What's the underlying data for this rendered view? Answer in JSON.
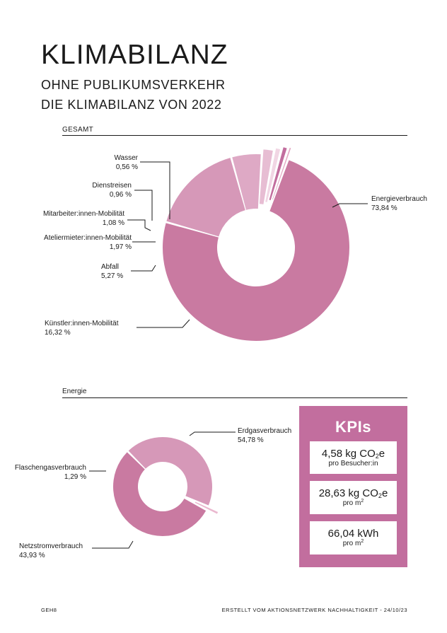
{
  "header": {
    "title": "KLIMABILANZ",
    "subtitle_line1": "OHNE PUBLIKUMSVERKEHR",
    "subtitle_line2": "DIE KLIMABILANZ VON 2022"
  },
  "sections": {
    "gesamt_heading": "GESAMT",
    "energie_heading": "Energie"
  },
  "chart_data": [
    {
      "type": "donut",
      "title": "GESAMT",
      "categories": [
        "Energieverbrauch",
        "Künstler:innen-Mobilität",
        "Abfall",
        "Ateliermieter:innen-Mobilität",
        "Mitarbeiter:innen-Mobilität",
        "Dienstreisen",
        "Wasser"
      ],
      "values": [
        73.84,
        16.32,
        5.27,
        1.97,
        1.08,
        0.96,
        0.56
      ],
      "value_labels": [
        "73,84 %",
        "16,32 %",
        "5,27 %",
        "1,97 %",
        "1,08 %",
        "0,96 %",
        "0,56 %"
      ],
      "unit": "%",
      "colors": [
        "#c97aa1",
        "#d698b8",
        "#dea9c5",
        "#e7bdd3",
        "#f1d6e4",
        "#c26e9e",
        "#e3a9c4"
      ]
    },
    {
      "type": "donut",
      "title": "Energie",
      "categories": [
        "Erdgasverbrauch",
        "Netzstromverbrauch",
        "Flaschengasverbrauch"
      ],
      "values": [
        54.78,
        43.93,
        1.29
      ],
      "value_labels": [
        "54,78 %",
        "43,93 %",
        "1,29 %"
      ],
      "unit": "%",
      "colors": [
        "#c97aa1",
        "#d698b8",
        "#eab8cf"
      ]
    }
  ],
  "kpis": {
    "title": "KPIs",
    "items": [
      {
        "value": "4,58 kg CO",
        "sub": "2",
        "value_end": "e",
        "unit": "pro Besucher:in",
        "sup": ""
      },
      {
        "value": "28,63 kg CO",
        "sub": "2",
        "value_end": "e",
        "unit": "pro m",
        "sup": "2"
      },
      {
        "value": "66,04 kWh",
        "sub": "",
        "value_end": "",
        "unit": "pro m",
        "sup": "2"
      }
    ],
    "panel_color": "#c26e9e"
  },
  "footer": {
    "left": "GEH8",
    "right": "ERSTELLT VOM AKTIONSNETZWERK NACHHALTIGKEIT  -  24/10/23"
  }
}
